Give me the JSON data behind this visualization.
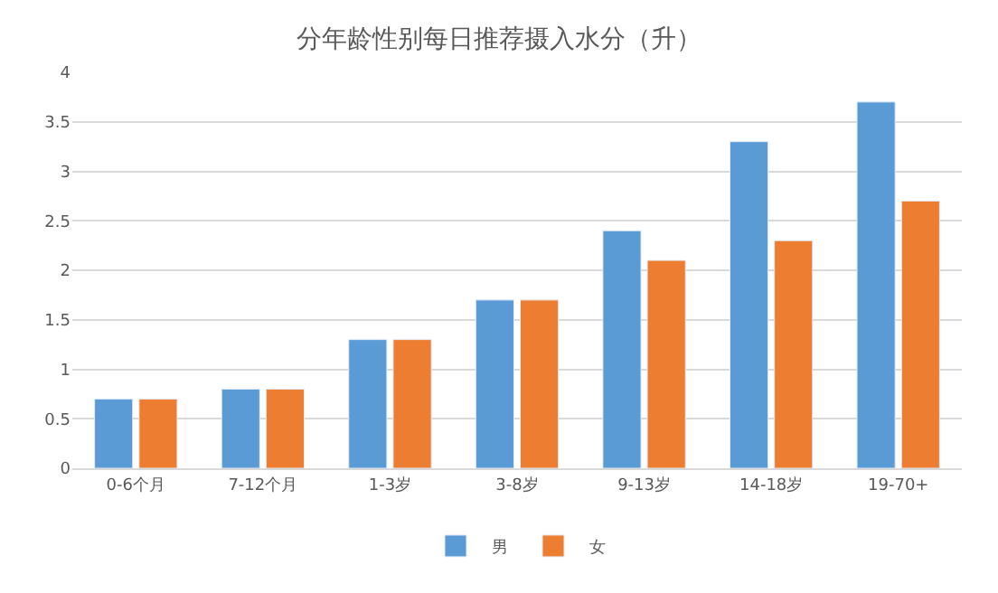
{
  "chart_data": {
    "type": "bar",
    "title": "分年龄性别每日推荐摄入水分（升）",
    "categories": [
      "0-6个月",
      "7-12个月",
      "1-3岁",
      "3-8岁",
      "9-13岁",
      "14-18岁",
      "19-70+"
    ],
    "series": [
      {
        "name": "男",
        "color": "#5b9bd5",
        "values": [
          0.7,
          0.8,
          1.3,
          1.7,
          2.4,
          3.3,
          3.7
        ]
      },
      {
        "name": "女",
        "color": "#ed7d31",
        "values": [
          0.7,
          0.8,
          1.3,
          1.7,
          2.1,
          2.3,
          2.7
        ]
      }
    ],
    "ylim": [
      0,
      4
    ],
    "yticks": [
      0,
      0.5,
      1,
      1.5,
      2,
      2.5,
      3,
      3.5,
      4
    ],
    "grid": "y",
    "legend": "bottom"
  }
}
